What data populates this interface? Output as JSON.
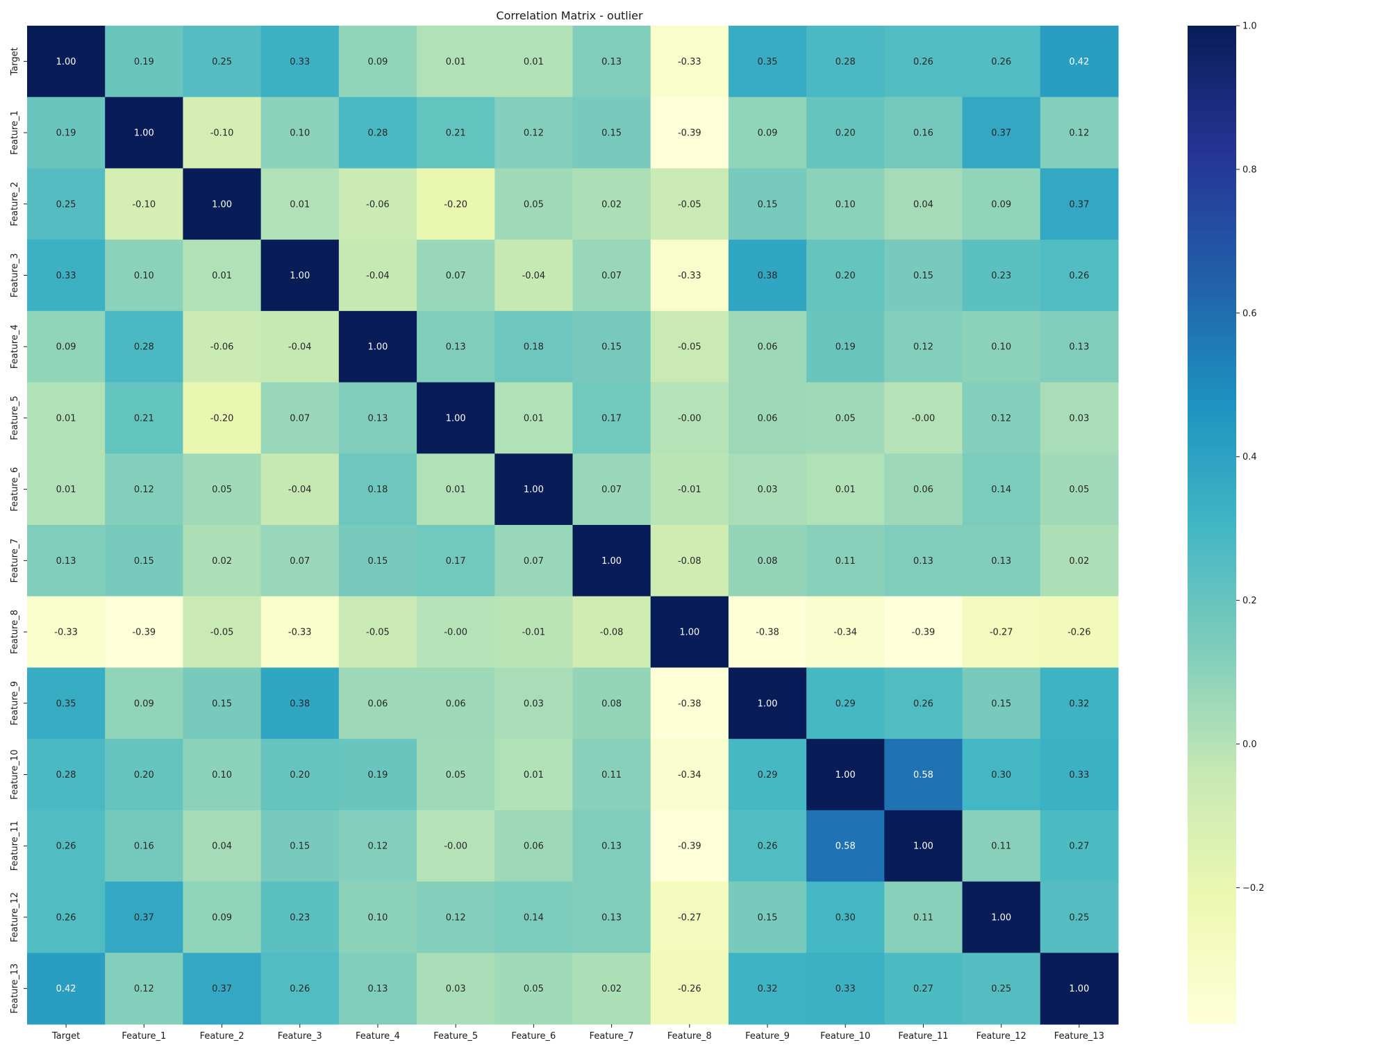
{
  "chart_data": {
    "type": "heatmap",
    "title": "Correlation Matrix - outlier",
    "labels": [
      "Target",
      "Feature_1",
      "Feature_2",
      "Feature_3",
      "Feature_4",
      "Feature_5",
      "Feature_6",
      "Feature_7",
      "Feature_8",
      "Feature_9",
      "Feature_10",
      "Feature_11",
      "Feature_12",
      "Feature_13"
    ],
    "values": [
      [
        "1.00",
        "0.19",
        "0.25",
        "0.33",
        "0.09",
        "0.01",
        "0.01",
        "0.13",
        "-0.33",
        "0.35",
        "0.28",
        "0.26",
        "0.26",
        "0.42"
      ],
      [
        "0.19",
        "1.00",
        "-0.10",
        "0.10",
        "0.28",
        "0.21",
        "0.12",
        "0.15",
        "-0.39",
        "0.09",
        "0.20",
        "0.16",
        "0.37",
        "0.12"
      ],
      [
        "0.25",
        "-0.10",
        "1.00",
        "0.01",
        "-0.06",
        "-0.20",
        "0.05",
        "0.02",
        "-0.05",
        "0.15",
        "0.10",
        "0.04",
        "0.09",
        "0.37"
      ],
      [
        "0.33",
        "0.10",
        "0.01",
        "1.00",
        "-0.04",
        "0.07",
        "-0.04",
        "0.07",
        "-0.33",
        "0.38",
        "0.20",
        "0.15",
        "0.23",
        "0.26"
      ],
      [
        "0.09",
        "0.28",
        "-0.06",
        "-0.04",
        "1.00",
        "0.13",
        "0.18",
        "0.15",
        "-0.05",
        "0.06",
        "0.19",
        "0.12",
        "0.10",
        "0.13"
      ],
      [
        "0.01",
        "0.21",
        "-0.20",
        "0.07",
        "0.13",
        "1.00",
        "0.01",
        "0.17",
        "-0.00",
        "0.06",
        "0.05",
        "-0.00",
        "0.12",
        "0.03"
      ],
      [
        "0.01",
        "0.12",
        "0.05",
        "-0.04",
        "0.18",
        "0.01",
        "1.00",
        "0.07",
        "-0.01",
        "0.03",
        "0.01",
        "0.06",
        "0.14",
        "0.05"
      ],
      [
        "0.13",
        "0.15",
        "0.02",
        "0.07",
        "0.15",
        "0.17",
        "0.07",
        "1.00",
        "-0.08",
        "0.08",
        "0.11",
        "0.13",
        "0.13",
        "0.02"
      ],
      [
        "-0.33",
        "-0.39",
        "-0.05",
        "-0.33",
        "-0.05",
        "-0.00",
        "-0.01",
        "-0.08",
        "1.00",
        "-0.38",
        "-0.34",
        "-0.39",
        "-0.27",
        "-0.26"
      ],
      [
        "0.35",
        "0.09",
        "0.15",
        "0.38",
        "0.06",
        "0.06",
        "0.03",
        "0.08",
        "-0.38",
        "1.00",
        "0.29",
        "0.26",
        "0.15",
        "0.32"
      ],
      [
        "0.28",
        "0.20",
        "0.10",
        "0.20",
        "0.19",
        "0.05",
        "0.01",
        "0.11",
        "-0.34",
        "0.29",
        "1.00",
        "0.58",
        "0.30",
        "0.33"
      ],
      [
        "0.26",
        "0.16",
        "0.04",
        "0.15",
        "0.12",
        "-0.00",
        "0.06",
        "0.13",
        "-0.39",
        "0.26",
        "0.58",
        "1.00",
        "0.11",
        "0.27"
      ],
      [
        "0.26",
        "0.37",
        "0.09",
        "0.23",
        "0.10",
        "0.12",
        "0.14",
        "0.13",
        "-0.27",
        "0.15",
        "0.30",
        "0.11",
        "1.00",
        "0.25"
      ],
      [
        "0.42",
        "0.12",
        "0.37",
        "0.26",
        "0.13",
        "0.03",
        "0.05",
        "0.02",
        "-0.26",
        "0.32",
        "0.33",
        "0.27",
        "0.25",
        "1.00"
      ]
    ],
    "colorbar": {
      "min": -0.39,
      "max": 1.0,
      "ticks": [
        "1.0",
        "0.8",
        "0.6",
        "0.4",
        "0.2",
        "0.0",
        "−0.2"
      ],
      "tick_values": [
        1.0,
        0.8,
        0.6,
        0.4,
        0.2,
        0.0,
        -0.2
      ]
    },
    "colormap": {
      "name": "YlGnBu",
      "stops": [
        "#ffffd9",
        "#edf8b1",
        "#c7e9b4",
        "#7fcdbb",
        "#41b6c4",
        "#1d91c0",
        "#225ea8",
        "#253494",
        "#081d58"
      ]
    },
    "annotation_colors": {
      "dark_text": "#262626",
      "light_text": "#ffffff"
    },
    "grid": false
  }
}
